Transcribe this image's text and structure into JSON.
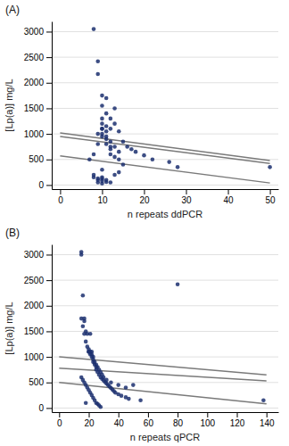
{
  "chart_data": [
    {
      "type": "scatter",
      "title": "(A)",
      "xlabel": "n repeats ddPCR",
      "ylabel": "[Lp(a)] mg/L",
      "xlim": [
        -2,
        52
      ],
      "ylim": [
        -80,
        3200
      ],
      "xticks": [
        0,
        10,
        20,
        30,
        40,
        50
      ],
      "yticks": [
        0,
        500,
        1000,
        1500,
        2000,
        2500,
        3000
      ],
      "grid": "y",
      "series": [
        {
          "type": "scatter",
          "color": "#1b2f6e",
          "x": [
            8,
            8,
            9,
            9,
            9,
            10,
            10,
            10,
            10,
            10,
            10,
            10,
            10,
            11,
            11,
            11,
            11,
            11,
            12,
            12,
            12,
            12,
            13,
            13,
            13,
            13,
            14,
            14,
            15,
            15,
            16,
            17,
            18,
            20,
            22,
            26,
            28,
            50,
            7,
            8,
            9,
            9,
            10,
            10,
            11,
            11,
            12,
            12,
            13,
            14,
            14,
            8,
            9,
            9,
            10,
            10,
            10,
            11,
            11,
            12
          ],
          "values": [
            3050,
            150,
            2420,
            2170,
            100,
            1750,
            1550,
            1200,
            1100,
            1000,
            950,
            300,
            150,
            1700,
            1400,
            1150,
            900,
            800,
            1300,
            1100,
            750,
            600,
            1500,
            1200,
            550,
            200,
            1050,
            500,
            850,
            400,
            750,
            700,
            650,
            580,
            500,
            450,
            350,
            350,
            500,
            600,
            1000,
            800,
            1300,
            1100,
            1050,
            950,
            850,
            700,
            750,
            650,
            250,
            200,
            130,
            50,
            120,
            80,
            30,
            100,
            60,
            50
          ]
        },
        {
          "type": "line",
          "color": "#7a7a7a",
          "x": [
            0,
            50
          ],
          "values": [
            1020,
            480
          ]
        },
        {
          "type": "line",
          "color": "#7a7a7a",
          "x": [
            0,
            50
          ],
          "values": [
            570,
            40
          ]
        },
        {
          "type": "line",
          "color": "#7a7a7a",
          "x": [
            0,
            50
          ],
          "values": [
            950,
            420
          ]
        }
      ]
    },
    {
      "type": "scatter",
      "title": "(B)",
      "xlabel": "n repeats qPCR",
      "ylabel": "[Lp(a)] mg/L",
      "xlim": [
        -5,
        148
      ],
      "ylim": [
        -80,
        3200
      ],
      "xticks": [
        0,
        20,
        40,
        60,
        80,
        100,
        120,
        140
      ],
      "yticks": [
        0,
        500,
        1000,
        1500,
        2000,
        2500,
        3000
      ],
      "grid": "y",
      "series": [
        {
          "type": "scatter",
          "color": "#1b2f6e",
          "x": [
            15,
            15,
            16,
            17,
            17,
            18,
            18,
            19,
            20,
            20,
            21,
            21,
            22,
            22,
            23,
            23,
            24,
            25,
            25,
            26,
            27,
            28,
            29,
            30,
            31,
            32,
            33,
            34,
            35,
            36,
            37,
            38,
            40,
            42,
            45,
            47,
            50,
            55,
            80,
            138,
            15,
            16,
            17,
            18,
            19,
            20,
            21,
            22,
            23,
            24,
            25,
            26,
            27,
            28,
            29,
            30,
            32,
            35,
            40,
            45,
            15,
            16,
            17,
            18,
            19,
            20,
            21,
            22,
            23,
            24,
            25,
            26,
            27,
            28
          ],
          "values": [
            3050,
            3000,
            2200,
            1750,
            1700,
            1500,
            100,
            1450,
            1150,
            1100,
            1450,
            1100,
            1100,
            1050,
            1000,
            900,
            850,
            800,
            750,
            700,
            650,
            600,
            570,
            540,
            510,
            480,
            450,
            420,
            390,
            360,
            330,
            300,
            270,
            240,
            210,
            180,
            450,
            150,
            2420,
            150,
            1750,
            1600,
            1450,
            1300,
            1200,
            1100,
            1050,
            1000,
            950,
            900,
            850,
            800,
            750,
            700,
            650,
            600,
            550,
            500,
            450,
            400,
            600,
            550,
            500,
            450,
            400,
            350,
            300,
            250,
            200,
            150,
            100,
            80,
            50,
            20
          ]
        },
        {
          "type": "line",
          "color": "#7a7a7a",
          "x": [
            0,
            140
          ],
          "values": [
            1000,
            650
          ]
        },
        {
          "type": "line",
          "color": "#7a7a7a",
          "x": [
            0,
            140
          ],
          "values": [
            780,
            530
          ]
        },
        {
          "type": "line",
          "color": "#7a7a7a",
          "x": [
            0,
            140
          ],
          "values": [
            500,
            80
          ]
        }
      ]
    }
  ]
}
